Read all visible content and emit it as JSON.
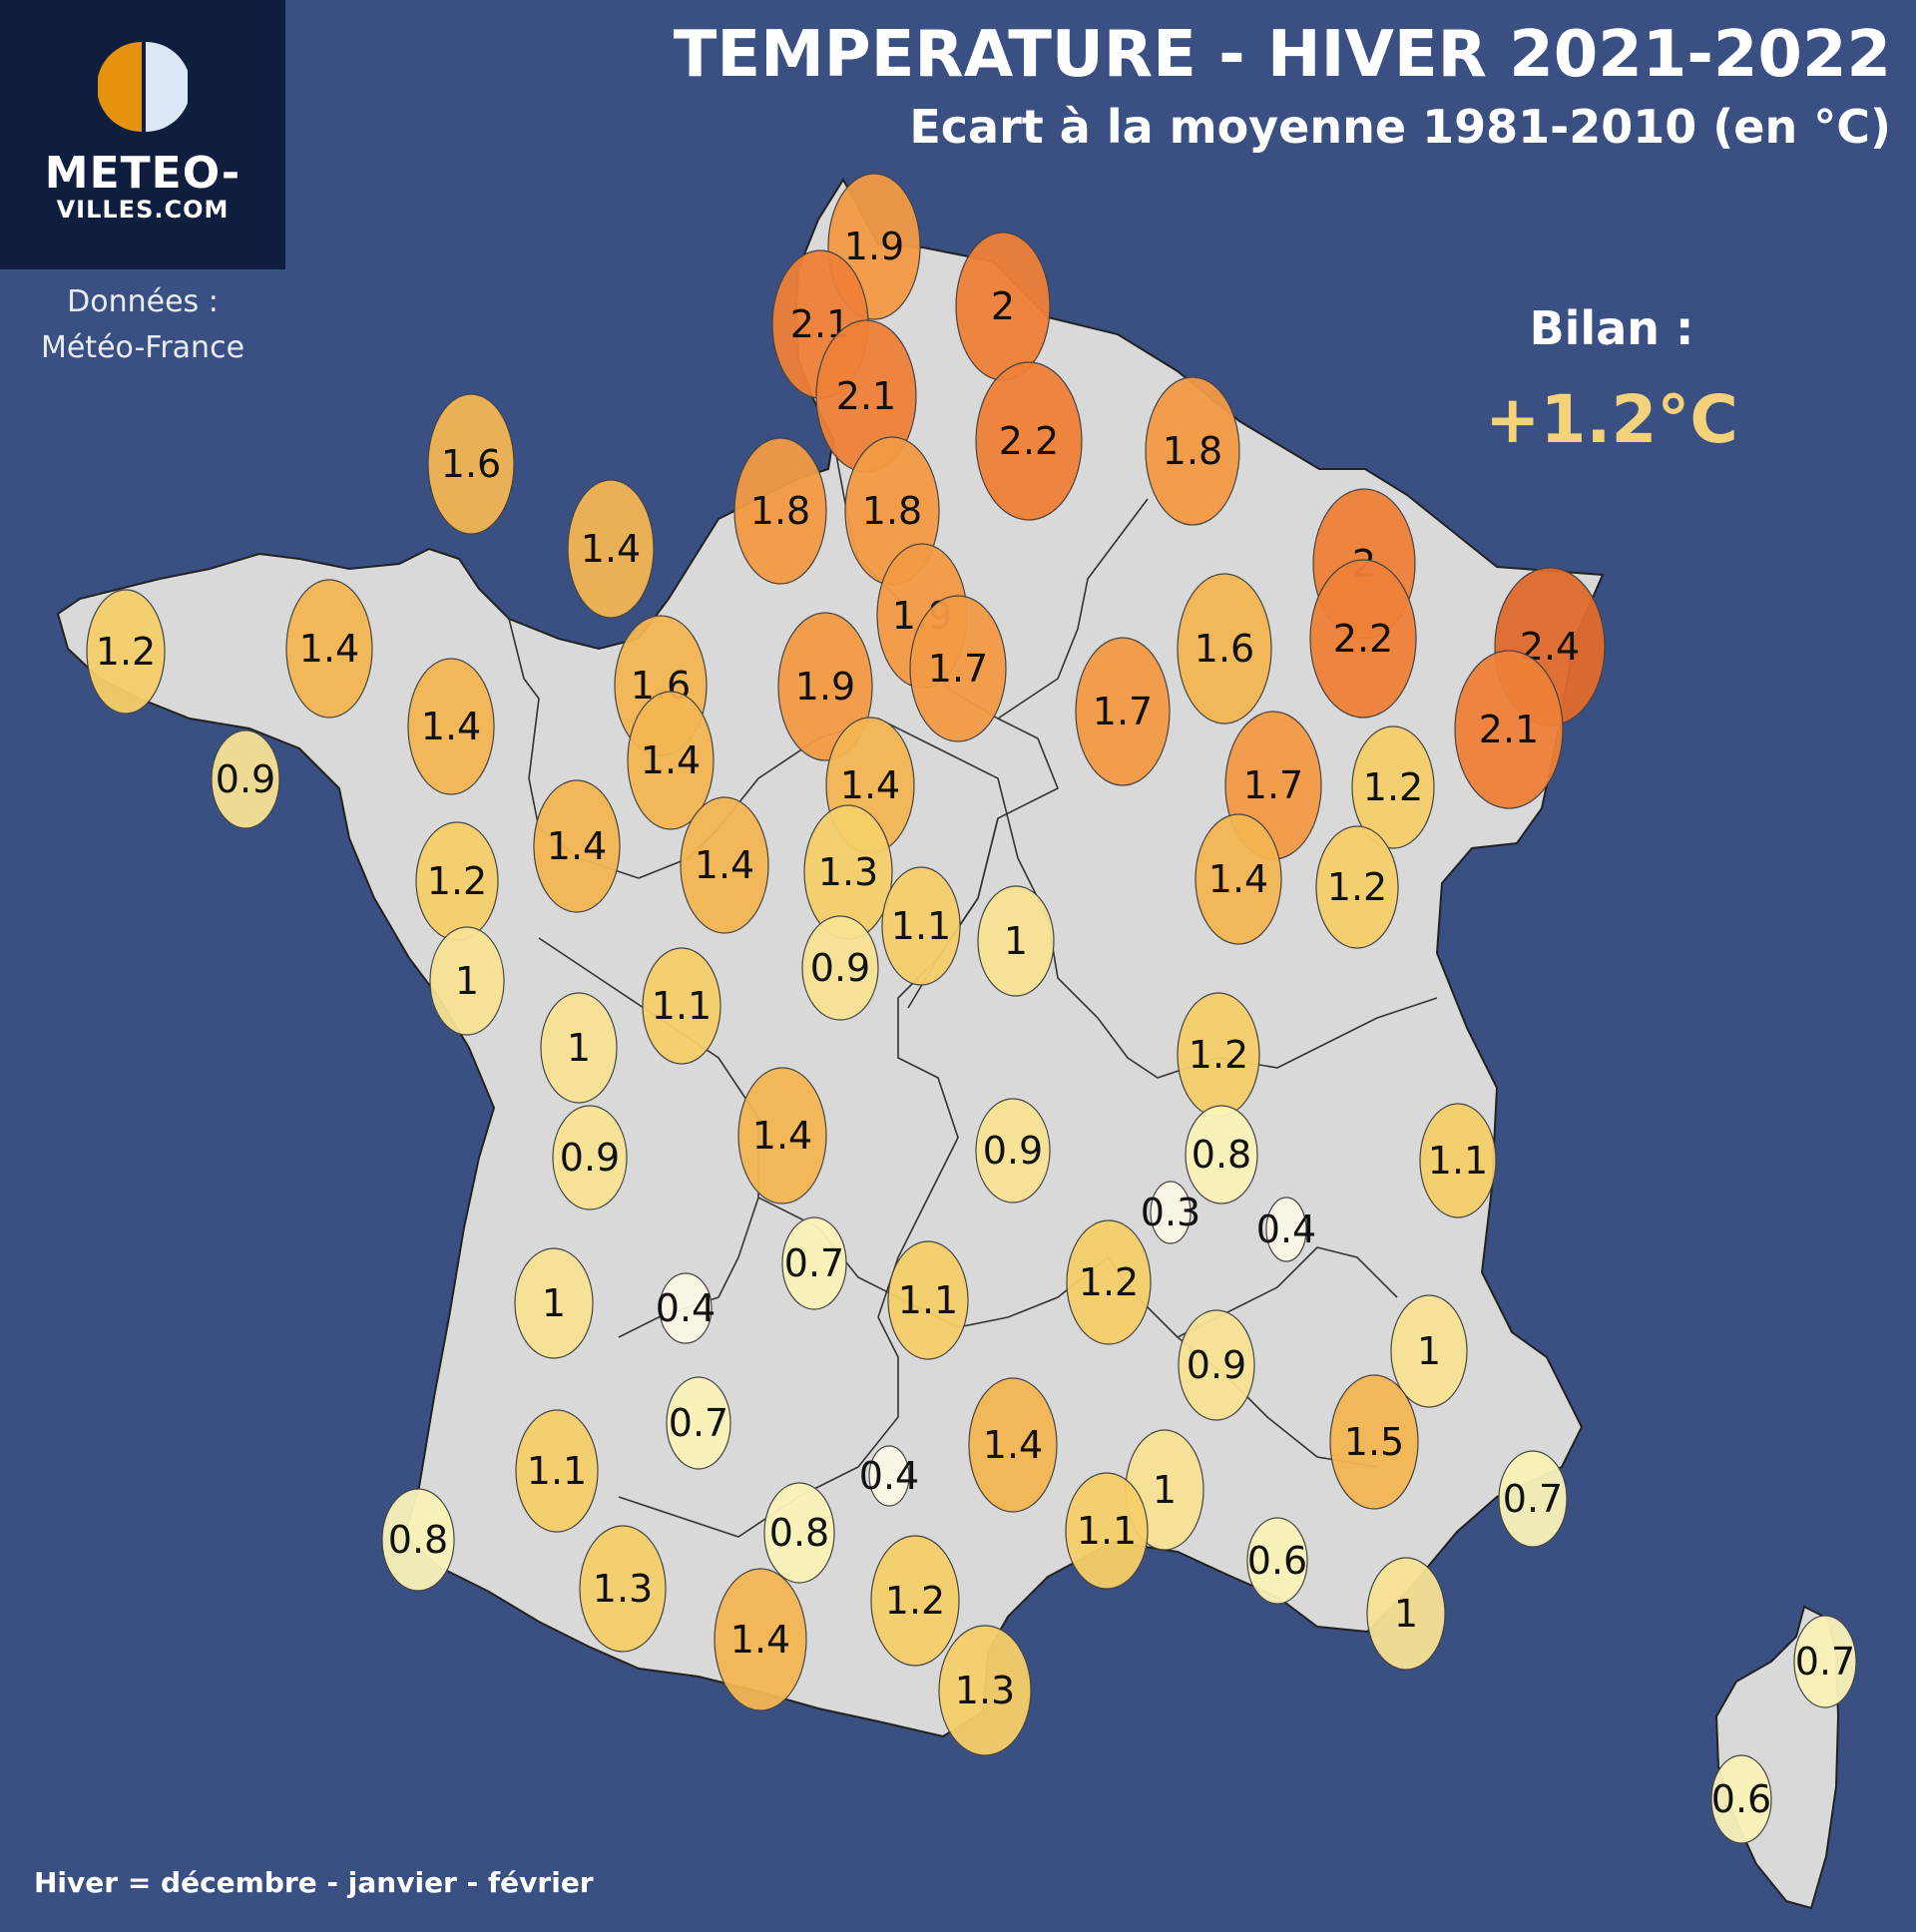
{
  "header": {
    "title": "TEMPERATURE - HIVER 2021-2022",
    "subtitle": "Ecart à la moyenne 1981-2010 (en °C)"
  },
  "logo": {
    "line1": "METEO-",
    "line2": "VILLES.COM"
  },
  "source": {
    "line1": "Données :",
    "line2": "Météo-France"
  },
  "summary": {
    "label": "Bilan :",
    "value": "+1.2°C"
  },
  "footer": {
    "text": "Hiver = décembre - janvier - février"
  },
  "colors": {
    "background": "#3a5082",
    "land": "#d9d9d9",
    "logo_bg": "#0f1e3e",
    "accent": "#f4d27a",
    "scale": [
      "#fbf7e6",
      "#faf3b8",
      "#f7e394",
      "#f5cf69",
      "#f3b552",
      "#f29a45",
      "#ee7f38",
      "#df6a2c"
    ]
  },
  "stations": [
    {
      "value": "1.9"
    },
    {
      "value": "2.1"
    },
    {
      "value": "2"
    },
    {
      "value": "2.1"
    },
    {
      "value": "2.2"
    },
    {
      "value": "1.8"
    },
    {
      "value": "1.6"
    },
    {
      "value": "1.8"
    },
    {
      "value": "1.8"
    },
    {
      "value": "1.4"
    },
    {
      "value": "2"
    },
    {
      "value": "1.9"
    },
    {
      "value": "1.2"
    },
    {
      "value": "1.4"
    },
    {
      "value": "1.6"
    },
    {
      "value": "2.2"
    },
    {
      "value": "2.4"
    },
    {
      "value": "1.9"
    },
    {
      "value": "1.7"
    },
    {
      "value": "1.6"
    },
    {
      "value": "1.7"
    },
    {
      "value": "1.4"
    },
    {
      "value": "2.1"
    },
    {
      "value": "1.4"
    },
    {
      "value": "0.9"
    },
    {
      "value": "1.4"
    },
    {
      "value": "1.7"
    },
    {
      "value": "1.2"
    },
    {
      "value": "1.4"
    },
    {
      "value": "1.4"
    },
    {
      "value": "1.2"
    },
    {
      "value": "1.3"
    },
    {
      "value": "1.4"
    },
    {
      "value": "1.2"
    },
    {
      "value": "1.1"
    },
    {
      "value": "1"
    },
    {
      "value": "1"
    },
    {
      "value": "1.1"
    },
    {
      "value": "0.9"
    },
    {
      "value": "1"
    },
    {
      "value": "1.2"
    },
    {
      "value": "1.4"
    },
    {
      "value": "0.9"
    },
    {
      "value": "0.8"
    },
    {
      "value": "1.1"
    },
    {
      "value": "0.9"
    },
    {
      "value": "0.3"
    },
    {
      "value": "0.4"
    },
    {
      "value": "0.7"
    },
    {
      "value": "1"
    },
    {
      "value": "0.4"
    },
    {
      "value": "1.1"
    },
    {
      "value": "1.2"
    },
    {
      "value": "1"
    },
    {
      "value": "0.9"
    },
    {
      "value": "0.7"
    },
    {
      "value": "1.5"
    },
    {
      "value": "1.4"
    },
    {
      "value": "1.1"
    },
    {
      "value": "0.4"
    },
    {
      "value": "1"
    },
    {
      "value": "0.8"
    },
    {
      "value": "0.8"
    },
    {
      "value": "1.1"
    },
    {
      "value": "0.7"
    },
    {
      "value": "0.6"
    },
    {
      "value": "1.3"
    },
    {
      "value": "1.2"
    },
    {
      "value": "1.4"
    },
    {
      "value": "1"
    },
    {
      "value": "1.3"
    },
    {
      "value": "0.7"
    },
    {
      "value": "0.6"
    }
  ]
}
